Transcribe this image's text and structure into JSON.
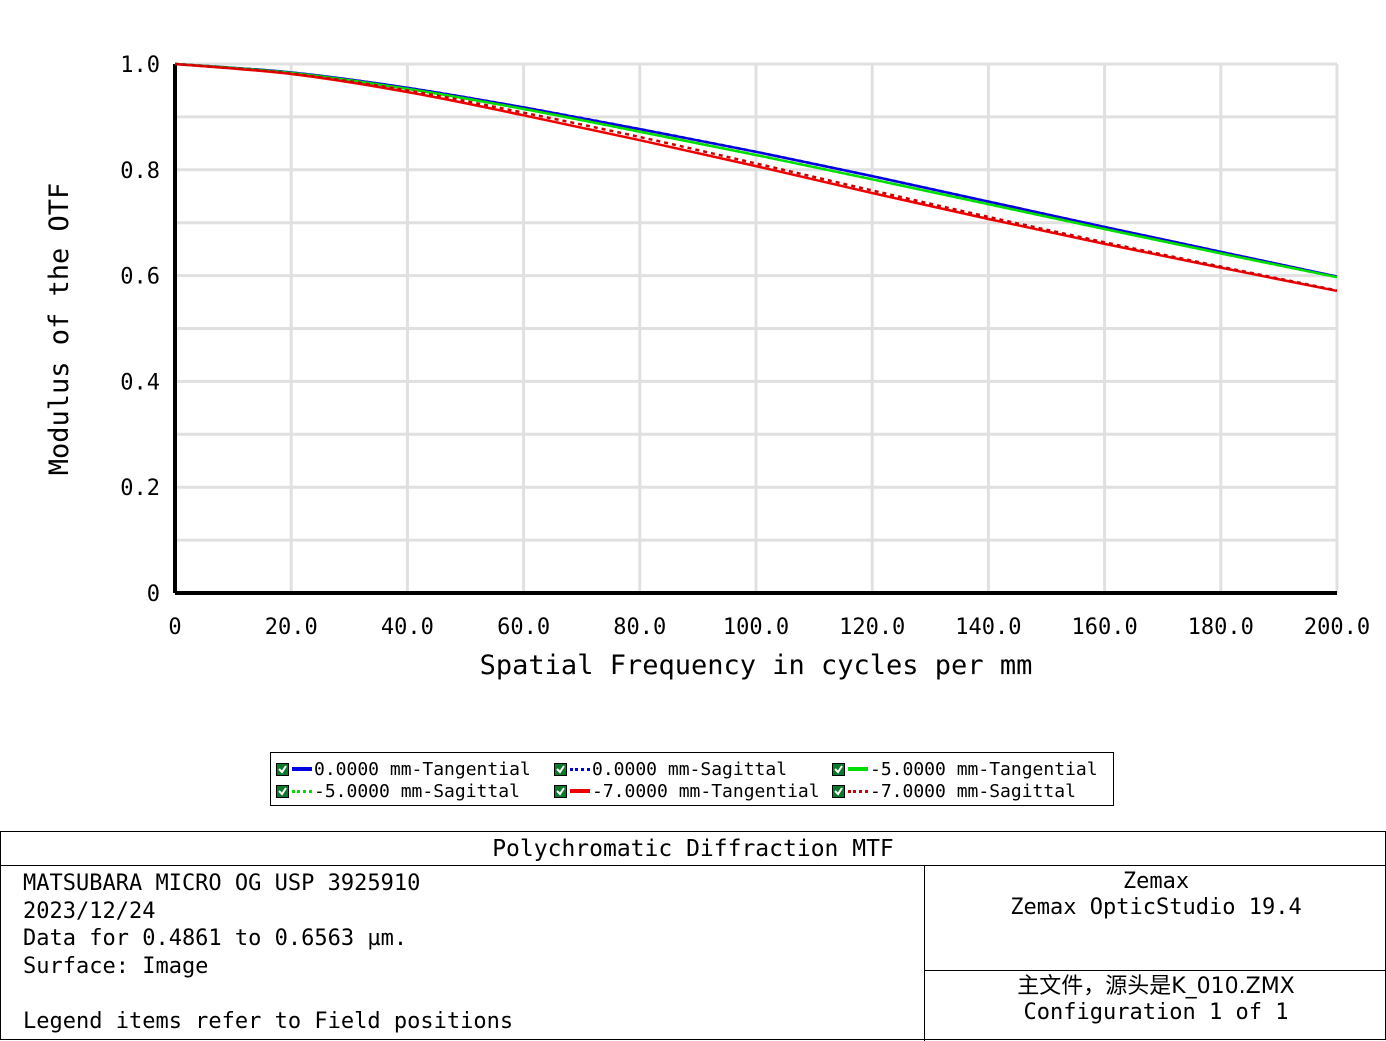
{
  "chart_data": {
    "type": "line",
    "xlabel": "Spatial Frequency in cycles per mm",
    "ylabel": "Modulus of the OTF",
    "xlim": [
      0,
      200
    ],
    "ylim": [
      0,
      1.0
    ],
    "x_ticks": [
      "0",
      "20.0",
      "40.0",
      "60.0",
      "80.0",
      "100.0",
      "120.0",
      "140.0",
      "160.0",
      "180.0",
      "200.0"
    ],
    "y_ticks": [
      "0",
      "0.2",
      "0.4",
      "0.6",
      "0.8",
      "1.0"
    ],
    "grid": true,
    "x": [
      0,
      20,
      40,
      60,
      80,
      100,
      120,
      140,
      160,
      180,
      200
    ],
    "series": [
      {
        "name": "0.0000 mm-Tangential",
        "color": "#0000e0",
        "dash": "solid",
        "values": [
          1.0,
          0.984,
          0.955,
          0.918,
          0.877,
          0.834,
          0.788,
          0.74,
          0.692,
          0.645,
          0.598
        ]
      },
      {
        "name": "0.0000 mm-Sagittal",
        "color": "#0000e0",
        "dash": "dotted",
        "values": [
          1.0,
          0.984,
          0.955,
          0.918,
          0.877,
          0.834,
          0.788,
          0.74,
          0.692,
          0.645,
          0.598
        ]
      },
      {
        "name": "-5.0000 mm-Tangential",
        "color": "#00dd00",
        "dash": "solid",
        "values": [
          1.0,
          0.983,
          0.953,
          0.915,
          0.872,
          0.828,
          0.782,
          0.735,
          0.688,
          0.642,
          0.597
        ]
      },
      {
        "name": "-5.0000 mm-Sagittal",
        "color": "#00dd00",
        "dash": "dotted",
        "values": [
          1.0,
          0.983,
          0.953,
          0.915,
          0.872,
          0.828,
          0.782,
          0.735,
          0.688,
          0.642,
          0.597
        ]
      },
      {
        "name": "-7.0000 mm-Tangential",
        "color": "#ee0000",
        "dash": "solid",
        "values": [
          1.0,
          0.981,
          0.947,
          0.903,
          0.856,
          0.807,
          0.756,
          0.707,
          0.66,
          0.615,
          0.571
        ]
      },
      {
        "name": "-7.0000 mm-Sagittal",
        "color": "#cc0000",
        "dash": "dotted",
        "values": [
          1.0,
          0.982,
          0.95,
          0.908,
          0.862,
          0.812,
          0.761,
          0.711,
          0.663,
          0.617,
          0.572
        ]
      }
    ]
  },
  "info": {
    "title": "Polychromatic Diffraction MTF",
    "left_lines": [
      "MATSUBARA MICRO OG USP 3925910",
      "2023/12/24",
      "Data for 0.4861 to 0.6563 µm.",
      "Surface: Image",
      "",
      "Legend items refer to Field positions"
    ],
    "right_top_line1": "Zemax",
    "right_top_line2": "Zemax OpticStudio 19.4",
    "right_bottom_line1": "主文件，源头是K_010.ZMX",
    "right_bottom_line2": "Configuration 1 of 1"
  }
}
